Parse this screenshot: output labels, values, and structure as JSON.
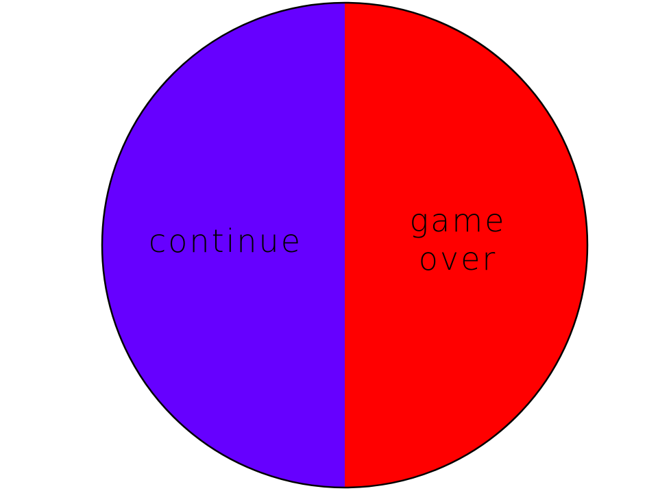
{
  "wheel": {
    "left": {
      "label": "continue",
      "color": "#6600ff"
    },
    "right": {
      "label_line1": "game",
      "label_line2": "over",
      "color": "#ff0000"
    },
    "outline_color": "#000000"
  }
}
